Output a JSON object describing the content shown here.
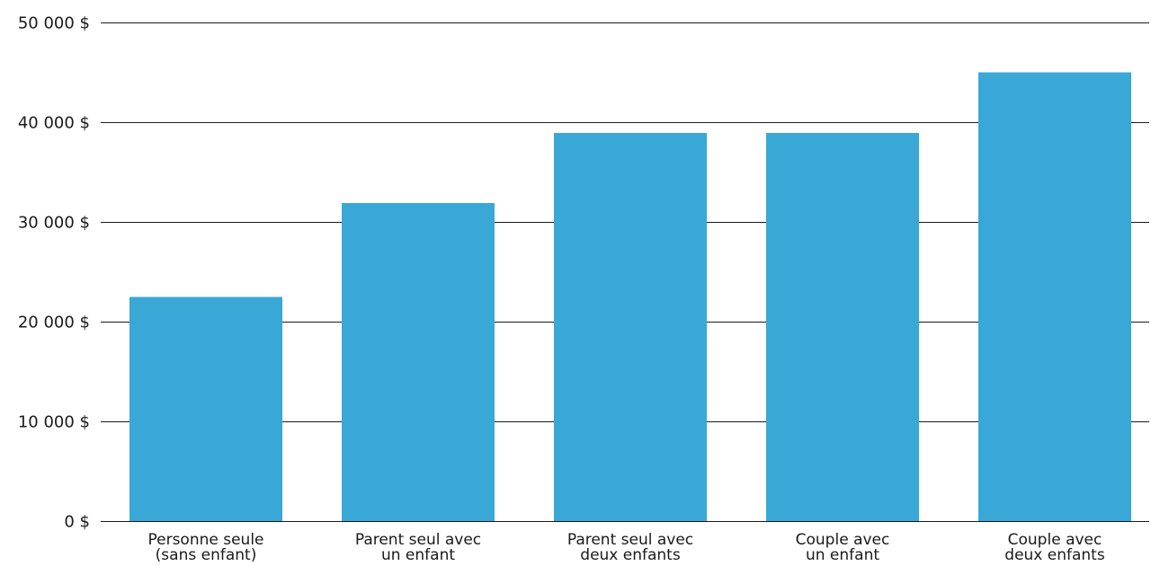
{
  "chart_data": {
    "type": "bar",
    "title": "",
    "xlabel": "",
    "ylabel": "",
    "categories": [
      [
        "Personne seule",
        "(sans enfant)"
      ],
      [
        "Parent seul avec",
        "un enfant"
      ],
      [
        "Parent seul avec",
        "deux enfants"
      ],
      [
        "Couple avec",
        "un enfant"
      ],
      [
        "Couple avec",
        "deux enfants"
      ]
    ],
    "values": [
      22500,
      31900,
      38900,
      38900,
      45000
    ],
    "ylim": [
      0,
      50000
    ],
    "yticks": [
      0,
      10000,
      20000,
      30000,
      40000,
      50000
    ],
    "ytick_labels": [
      "0 $",
      "10 000 $",
      "20 000 $",
      "30 000 $",
      "40 000 $",
      "50 000 $"
    ],
    "grid": true,
    "legend": "none",
    "colors": {
      "bar": "#39a8d6",
      "grid": "#1a1a1a",
      "text": "#1a1a1a"
    }
  }
}
